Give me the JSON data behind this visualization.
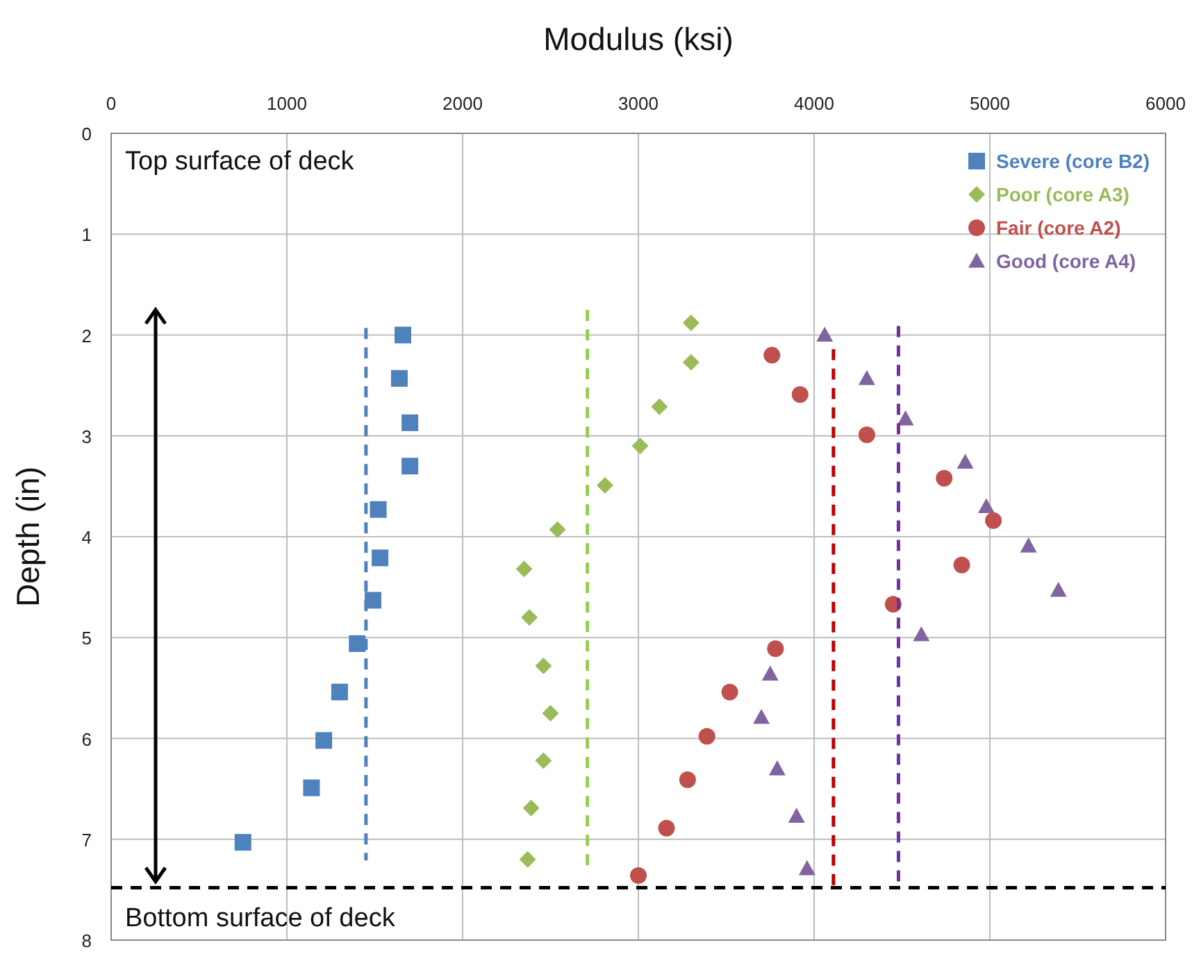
{
  "chart_data": {
    "type": "scatter",
    "xlabel": "Modulus (ksi)",
    "ylabel": "Depth (in)",
    "xlim": [
      0,
      6000
    ],
    "xticks": [
      0,
      1000,
      2000,
      3000,
      4000,
      5000,
      6000
    ],
    "ylim": [
      8,
      0
    ],
    "yticks": [
      0,
      1,
      2,
      3,
      4,
      5,
      6,
      7,
      8
    ],
    "grid": true,
    "legend": "top right",
    "series": [
      {
        "name": "Severe (core B2)",
        "color": "#4f81bd",
        "marker": "square",
        "x": [
          1660,
          1640,
          1700,
          1700,
          1520,
          1530,
          1490,
          1400,
          1300,
          1210,
          1140,
          750
        ],
        "values": [
          2.0,
          2.43,
          2.87,
          3.3,
          3.73,
          4.21,
          4.63,
          5.06,
          5.54,
          6.02,
          6.49,
          7.03
        ]
      },
      {
        "name": "Poor (core A3)",
        "color": "#9bbb59",
        "marker": "diamond",
        "x": [
          3300,
          3300,
          3120,
          3010,
          2810,
          2540,
          2350,
          2380,
          2460,
          2500,
          2460,
          2390,
          2370
        ],
        "values": [
          1.88,
          2.27,
          2.71,
          3.1,
          3.49,
          3.93,
          4.32,
          4.8,
          5.28,
          5.75,
          6.22,
          6.69,
          7.2
        ]
      },
      {
        "name": "Fair (core A2)",
        "color": "#c0504d",
        "marker": "circle",
        "x": [
          3760,
          3920,
          4300,
          4740,
          5020,
          4840,
          4450,
          3780,
          3520,
          3390,
          3280,
          3160,
          3000
        ],
        "values": [
          2.2,
          2.59,
          2.99,
          3.42,
          3.84,
          4.28,
          4.67,
          5.11,
          5.54,
          5.98,
          6.41,
          6.89,
          7.36
        ]
      },
      {
        "name": "Good (core A4)",
        "color": "#8064a2",
        "marker": "triangle",
        "x": [
          4060,
          4300,
          4520,
          4860,
          4980,
          5220,
          5390,
          4610,
          3750,
          3700,
          3790,
          3900,
          3960
        ],
        "values": [
          2.0,
          2.43,
          2.83,
          3.26,
          3.7,
          4.09,
          4.53,
          4.97,
          5.36,
          5.79,
          6.3,
          6.77,
          7.29
        ]
      },
      {
        "type": "line",
        "color": "#4f81bd",
        "marker": "none",
        "line_style": "dashed",
        "x": [
          1450,
          1450
        ],
        "values": [
          1.93,
          7.21
        ]
      },
      {
        "type": "line",
        "color": "#92d050",
        "marker": "none",
        "line_style": "dashed",
        "x": [
          2710,
          2710
        ],
        "values": [
          1.75,
          7.27
        ]
      },
      {
        "type": "line",
        "color": "#c00000",
        "marker": "none",
        "line_style": "dashed",
        "x": [
          4110,
          4110
        ],
        "values": [
          2.14,
          7.48
        ]
      },
      {
        "type": "line",
        "color": "#7030a0",
        "marker": "none",
        "line_style": "dashed",
        "x": [
          4480,
          4480
        ],
        "values": [
          1.91,
          7.48
        ]
      }
    ],
    "ref_lines": [
      {
        "axis": "y",
        "value": 7.48,
        "color": "#000000",
        "line_style": "dashed"
      }
    ],
    "annotations": [
      "Top surface of deck",
      "Bottom surface of deck"
    ]
  }
}
